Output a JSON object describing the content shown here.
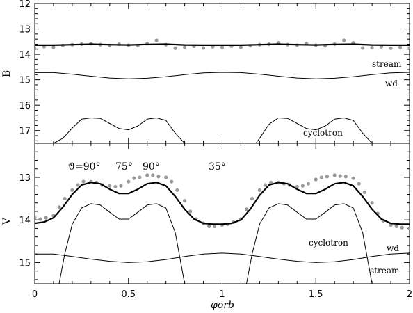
{
  "chart_data": [
    {
      "panel": "top",
      "type": "line",
      "ylabel": "B",
      "ylim": [
        17.5,
        12.0
      ],
      "xlim": [
        0,
        2
      ],
      "y_inverted": true,
      "yticks": [
        "12",
        "13",
        "14",
        "15",
        "16",
        "17"
      ],
      "labels": {
        "stream": "stream",
        "wd": "wd",
        "cyclotron": "cyclotron"
      },
      "series": [
        {
          "role": "observed",
          "style": "grey-dots",
          "x": [
            0.0,
            0.05,
            0.1,
            0.15,
            0.2,
            0.25,
            0.3,
            0.35,
            0.4,
            0.45,
            0.5,
            0.55,
            0.6,
            0.65,
            0.7,
            0.75,
            0.8,
            0.85,
            0.9,
            0.95,
            1.0,
            1.05,
            1.1,
            1.15,
            1.2,
            1.25,
            1.3,
            1.35,
            1.4,
            1.45,
            1.5,
            1.55,
            1.6,
            1.65,
            1.7,
            1.75,
            1.8,
            1.85,
            1.9,
            1.95,
            2.0
          ],
          "y": [
            13.78,
            13.7,
            13.72,
            13.65,
            13.62,
            13.6,
            13.58,
            13.62,
            13.65,
            13.6,
            13.64,
            13.66,
            13.58,
            13.45,
            13.62,
            13.76,
            13.72,
            13.68,
            13.75,
            13.7,
            13.72,
            13.68,
            13.72,
            13.66,
            13.62,
            13.6,
            13.55,
            13.62,
            13.64,
            13.58,
            13.64,
            13.66,
            13.6,
            13.45,
            13.55,
            13.75,
            13.74,
            13.7,
            13.76,
            13.72,
            13.74
          ]
        },
        {
          "role": "model-total",
          "style": "thick",
          "x": [
            0.0,
            0.1,
            0.2,
            0.3,
            0.4,
            0.5,
            0.6,
            0.7,
            0.8,
            0.9,
            1.0,
            1.1,
            1.2,
            1.3,
            1.4,
            1.5,
            1.6,
            1.7,
            1.8,
            1.9,
            2.0
          ],
          "y": [
            13.64,
            13.64,
            13.62,
            13.6,
            13.62,
            13.63,
            13.61,
            13.6,
            13.63,
            13.64,
            13.64,
            13.64,
            13.62,
            13.6,
            13.62,
            13.63,
            13.61,
            13.6,
            13.63,
            13.64,
            13.64
          ]
        },
        {
          "role": "stream",
          "style": "dashed",
          "x": [
            0.0,
            2.0
          ],
          "y": [
            14.08,
            14.08
          ]
        },
        {
          "role": "wd",
          "style": "thin",
          "x": [
            0.0,
            0.1,
            0.2,
            0.3,
            0.4,
            0.5,
            0.6,
            0.7,
            0.8,
            0.9,
            1.0,
            1.1,
            1.2,
            1.3,
            1.4,
            1.5,
            1.6,
            1.7,
            1.8,
            1.9,
            2.0
          ],
          "y": [
            14.72,
            14.72,
            14.78,
            14.86,
            14.93,
            14.96,
            14.94,
            14.88,
            14.8,
            14.73,
            14.71,
            14.72,
            14.78,
            14.86,
            14.93,
            14.96,
            14.94,
            14.88,
            14.8,
            14.73,
            14.71
          ]
        },
        {
          "role": "cyclotron",
          "style": "thin",
          "x": [
            0.1,
            0.15,
            0.2,
            0.25,
            0.3,
            0.35,
            0.4,
            0.45,
            0.5,
            0.55,
            0.6,
            0.65,
            0.7,
            0.75,
            0.8,
            1.18,
            1.2,
            1.25,
            1.3,
            1.35,
            1.4,
            1.45,
            1.5,
            1.55,
            1.6,
            1.65,
            1.7,
            1.75,
            1.8
          ],
          "y": [
            17.5,
            17.3,
            16.9,
            16.55,
            16.5,
            16.52,
            16.72,
            16.92,
            16.97,
            16.82,
            16.55,
            16.5,
            16.6,
            17.1,
            17.5,
            17.5,
            17.3,
            16.75,
            16.5,
            16.52,
            16.72,
            16.92,
            16.97,
            16.82,
            16.55,
            16.5,
            16.6,
            17.1,
            17.5
          ]
        }
      ]
    },
    {
      "panel": "bottom",
      "type": "line",
      "xlabel": "φorb",
      "ylabel": "V",
      "ylim": [
        15.5,
        12.2
      ],
      "xlim": [
        0,
        2
      ],
      "y_inverted": true,
      "xticks": [
        "0",
        "0.5",
        "1",
        "1.5",
        "2"
      ],
      "yticks": [
        "13",
        "14",
        "15"
      ],
      "labels": {
        "cyclotron": "cyclotron",
        "wd": "wd",
        "stream": "stream"
      },
      "angle_labels": [
        "ϑ=90°",
        "75°",
        "90°",
        "35°"
      ],
      "series": [
        {
          "role": "observed",
          "style": "grey-dots",
          "x": [
            0.0,
            0.03,
            0.06,
            0.1,
            0.13,
            0.16,
            0.2,
            0.23,
            0.26,
            0.3,
            0.33,
            0.36,
            0.4,
            0.43,
            0.46,
            0.5,
            0.53,
            0.56,
            0.6,
            0.63,
            0.66,
            0.7,
            0.73,
            0.76,
            0.8,
            0.83,
            0.86,
            0.9,
            0.93,
            0.96,
            1.0,
            1.03,
            1.06,
            1.1,
            1.13,
            1.16,
            1.2,
            1.23,
            1.26,
            1.3,
            1.33,
            1.36,
            1.4,
            1.43,
            1.46,
            1.5,
            1.53,
            1.56,
            1.6,
            1.63,
            1.66,
            1.7,
            1.73,
            1.76,
            1.8,
            1.83,
            1.86,
            1.9,
            1.93,
            1.96,
            2.0
          ],
          "y": [
            13.95,
            13.98,
            13.95,
            13.9,
            13.7,
            13.5,
            13.3,
            13.18,
            13.1,
            13.1,
            13.12,
            13.18,
            13.2,
            13.22,
            13.2,
            13.1,
            13.02,
            13.0,
            12.95,
            12.95,
            12.98,
            13.0,
            13.1,
            13.3,
            13.55,
            13.8,
            13.98,
            14.08,
            14.15,
            14.15,
            14.12,
            14.1,
            14.05,
            13.98,
            13.75,
            13.5,
            13.3,
            13.18,
            13.12,
            13.12,
            13.15,
            13.18,
            13.22,
            13.2,
            13.15,
            13.05,
            13.0,
            12.98,
            12.95,
            12.97,
            12.98,
            13.02,
            13.15,
            13.35,
            13.6,
            13.85,
            14.02,
            14.12,
            14.15,
            14.18,
            14.2
          ]
        },
        {
          "role": "model-total",
          "style": "thick",
          "x": [
            0.0,
            0.05,
            0.1,
            0.15,
            0.2,
            0.25,
            0.3,
            0.35,
            0.4,
            0.45,
            0.5,
            0.55,
            0.6,
            0.65,
            0.7,
            0.75,
            0.8,
            0.85,
            0.9,
            0.95,
            1.0,
            1.05,
            1.1,
            1.15,
            1.2,
            1.25,
            1.3,
            1.35,
            1.4,
            1.45,
            1.5,
            1.55,
            1.6,
            1.65,
            1.7,
            1.75,
            1.8,
            1.85,
            1.9,
            1.95,
            2.0
          ],
          "y": [
            14.08,
            14.05,
            13.95,
            13.7,
            13.4,
            13.18,
            13.12,
            13.15,
            13.28,
            13.38,
            13.38,
            13.28,
            13.15,
            13.12,
            13.2,
            13.45,
            13.75,
            13.98,
            14.08,
            14.1,
            14.1,
            14.08,
            14.0,
            13.75,
            13.42,
            13.18,
            13.12,
            13.15,
            13.28,
            13.38,
            13.38,
            13.28,
            13.15,
            13.12,
            13.2,
            13.45,
            13.75,
            13.98,
            14.08,
            14.1,
            14.1
          ]
        },
        {
          "role": "cyclotron",
          "style": "thin",
          "x": [
            0.13,
            0.16,
            0.2,
            0.25,
            0.3,
            0.35,
            0.4,
            0.45,
            0.5,
            0.55,
            0.6,
            0.65,
            0.7,
            0.75,
            0.8,
            1.13,
            1.16,
            1.2,
            1.25,
            1.3,
            1.35,
            1.4,
            1.45,
            1.5,
            1.55,
            1.6,
            1.65,
            1.7,
            1.75,
            1.8
          ],
          "y": [
            15.5,
            14.8,
            14.1,
            13.72,
            13.62,
            13.65,
            13.82,
            13.98,
            13.98,
            13.82,
            13.65,
            13.62,
            13.72,
            14.3,
            15.5,
            15.5,
            14.8,
            14.1,
            13.72,
            13.62,
            13.65,
            13.82,
            13.98,
            13.98,
            13.82,
            13.65,
            13.62,
            13.72,
            14.3,
            15.5
          ]
        },
        {
          "role": "wd",
          "style": "thin",
          "x": [
            0.0,
            0.1,
            0.2,
            0.3,
            0.4,
            0.5,
            0.6,
            0.7,
            0.8,
            0.9,
            1.0,
            1.1,
            1.2,
            1.3,
            1.4,
            1.5,
            1.6,
            1.7,
            1.8,
            1.9,
            2.0
          ],
          "y": [
            14.8,
            14.8,
            14.86,
            14.92,
            14.97,
            15.0,
            14.98,
            14.93,
            14.86,
            14.8,
            14.78,
            14.8,
            14.86,
            14.92,
            14.97,
            15.0,
            14.98,
            14.93,
            14.86,
            14.8,
            14.78
          ]
        },
        {
          "role": "stream",
          "style": "dashed",
          "x": [
            0.0,
            2.0
          ],
          "y": [
            14.98,
            14.98
          ]
        }
      ]
    }
  ]
}
